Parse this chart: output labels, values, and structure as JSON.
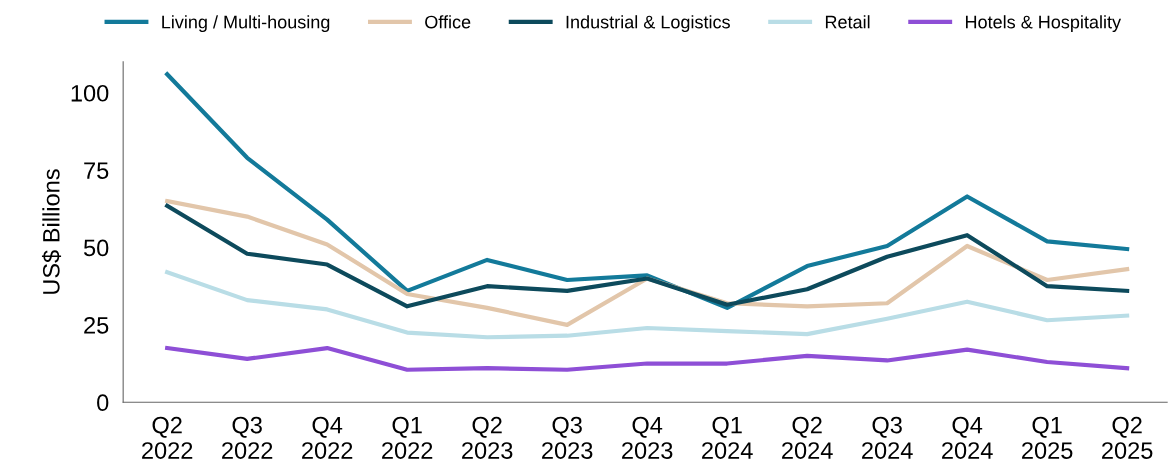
{
  "chart_data": {
    "type": "line",
    "ylabel": "US$ Billions",
    "categories": [
      "Q2\n2022",
      "Q3\n2022",
      "Q4\n2022",
      "Q1\n2022",
      "Q2\n2023",
      "Q3\n2023",
      "Q4\n2023",
      "Q1\n2024",
      "Q2\n2024",
      "Q3\n2024",
      "Q4\n2024",
      "Q1\n2025",
      "Q2\n2025"
    ],
    "series": [
      {
        "name": "Living / Multi-housing",
        "color": "#137a9a",
        "values": [
          106,
          79,
          59,
          36,
          46,
          39.5,
          41,
          30.5,
          44,
          50.5,
          66.5,
          52,
          49.5
        ]
      },
      {
        "name": "Office",
        "color": "#e2c6aa",
        "values": [
          65,
          60,
          51,
          35,
          30.5,
          25,
          40,
          32,
          31,
          32,
          50.5,
          39.5,
          43
        ]
      },
      {
        "name": "Industrial & Logistics",
        "color": "#0d4a5c",
        "values": [
          63.5,
          48,
          44.5,
          31,
          37.5,
          36,
          40,
          31.5,
          36.5,
          47,
          54,
          37.5,
          36
        ]
      },
      {
        "name": "Retail",
        "color": "#b9dde6",
        "values": [
          42,
          33,
          30,
          22.5,
          21,
          21.5,
          24,
          23,
          22,
          27,
          32.5,
          26.5,
          28
        ]
      },
      {
        "name": "Hotels & Hospitality",
        "color": "#8e4fd6",
        "values": [
          17.5,
          14,
          17.5,
          10.5,
          11,
          10.5,
          12.5,
          12.5,
          15,
          13.5,
          17,
          13,
          11
        ]
      }
    ],
    "ylim": [
      0,
      110
    ],
    "yticks": [
      0,
      25,
      50,
      75,
      100
    ],
    "grid": false,
    "legend": "top",
    "marker": "none",
    "line_style": "solid"
  }
}
